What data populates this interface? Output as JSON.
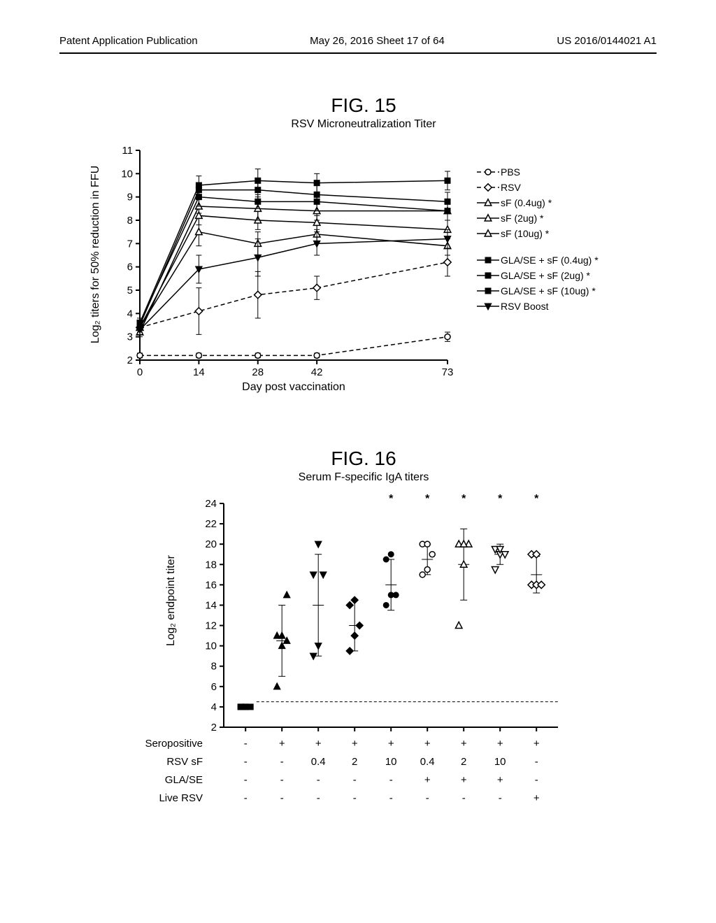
{
  "header": {
    "left": "Patent Application Publication",
    "center": "May 26, 2016  Sheet 17 of 64",
    "right": "US 2016/0144021 A1"
  },
  "fig15": {
    "title": "FIG. 15",
    "subtitle": "RSV Microneutralization Titer",
    "ylabel": "Log₂ titers for 50% reduction in FFU",
    "xlabel": "Day post vaccination",
    "xticks": [
      0,
      14,
      28,
      42,
      73
    ],
    "yticks": [
      2,
      3,
      4,
      5,
      6,
      7,
      8,
      9,
      10,
      11
    ],
    "ylim": [
      2,
      11
    ],
    "series": [
      {
        "name": "PBS",
        "marker": "circle-open",
        "dash": true,
        "data": [
          [
            0,
            2.2
          ],
          [
            14,
            2.2
          ],
          [
            28,
            2.2
          ],
          [
            42,
            2.2
          ],
          [
            73,
            3.0
          ]
        ],
        "err": [
          0.1,
          0.1,
          0.1,
          0.1,
          0.2
        ]
      },
      {
        "name": "RSV",
        "marker": "diamond-open",
        "dash": true,
        "data": [
          [
            0,
            3.4
          ],
          [
            14,
            4.1
          ],
          [
            28,
            4.8
          ],
          [
            42,
            5.1
          ],
          [
            73,
            6.2
          ]
        ],
        "err": [
          0.3,
          1.0,
          1.0,
          0.5,
          0.6
        ]
      },
      {
        "name": "sF (0.4ug) *",
        "marker": "triangle-up-open",
        "dash": false,
        "data": [
          [
            0,
            3.4
          ],
          [
            14,
            7.5
          ],
          [
            28,
            7.0
          ],
          [
            42,
            7.4
          ],
          [
            73,
            6.9
          ]
        ],
        "err": [
          0.2,
          0.6,
          0.5,
          0.4,
          0.4
        ]
      },
      {
        "name": "sF (2ug) *",
        "marker": "triangle-up-open",
        "dash": false,
        "data": [
          [
            0,
            3.4
          ],
          [
            14,
            8.2
          ],
          [
            28,
            8.0
          ],
          [
            42,
            7.9
          ],
          [
            73,
            7.6
          ]
        ],
        "err": [
          0.2,
          0.4,
          0.4,
          0.3,
          0.4
        ]
      },
      {
        "name": "sF (10ug) *",
        "marker": "triangle-up-open",
        "dash": false,
        "data": [
          [
            0,
            3.2
          ],
          [
            14,
            8.6
          ],
          [
            28,
            8.5
          ],
          [
            42,
            8.4
          ],
          [
            73,
            8.4
          ]
        ],
        "err": [
          0.2,
          0.3,
          0.5,
          0.4,
          0.4
        ]
      },
      {
        "name": "GLA/SE + sF (0.4ug) *",
        "marker": "square-solid",
        "dash": false,
        "data": [
          [
            0,
            3.6
          ],
          [
            14,
            9.0
          ],
          [
            28,
            8.8
          ],
          [
            42,
            8.8
          ],
          [
            73,
            8.4
          ]
        ],
        "err": [
          0.2,
          0.4,
          0.3,
          0.4,
          0.4
        ]
      },
      {
        "name": "GLA/SE + sF (2ug) *",
        "marker": "square-solid",
        "dash": false,
        "data": [
          [
            0,
            3.5
          ],
          [
            14,
            9.3
          ],
          [
            28,
            9.3
          ],
          [
            42,
            9.1
          ],
          [
            73,
            8.8
          ]
        ],
        "err": [
          0.2,
          0.3,
          0.4,
          0.4,
          0.4
        ]
      },
      {
        "name": "GLA/SE + sF (10ug) *",
        "marker": "square-solid",
        "dash": false,
        "data": [
          [
            0,
            3.6
          ],
          [
            14,
            9.5
          ],
          [
            28,
            9.7
          ],
          [
            42,
            9.6
          ],
          [
            73,
            9.7
          ]
        ],
        "err": [
          0.2,
          0.4,
          0.5,
          0.4,
          0.4
        ]
      },
      {
        "name": "RSV Boost",
        "marker": "triangle-down-solid",
        "dash": false,
        "data": [
          [
            0,
            3.3
          ],
          [
            14,
            5.9
          ],
          [
            28,
            6.4
          ],
          [
            42,
            7.0
          ],
          [
            73,
            7.2
          ]
        ],
        "err": [
          0.2,
          0.6,
          0.8,
          0.5,
          0.4
        ]
      }
    ]
  },
  "fig16": {
    "title": "FIG. 16",
    "subtitle": "Serum F-specific IgA titers",
    "ylabel": "Log₂ endpoint titer",
    "yticks": [
      2,
      4,
      6,
      8,
      10,
      12,
      14,
      16,
      18,
      20,
      22,
      24
    ],
    "ylim": [
      2,
      24
    ],
    "lod": 4.5,
    "row_labels": [
      "Seropositive",
      "RSV sF",
      "GLA/SE",
      "Live RSV"
    ],
    "groups": [
      {
        "cat": [
          "-",
          "-",
          "-",
          "-"
        ],
        "marker": "square-solid",
        "points": [
          4,
          4,
          4,
          4,
          4
        ],
        "mean": 4,
        "err": 0.2,
        "sig": ""
      },
      {
        "cat": [
          "+",
          "-",
          "-",
          "-"
        ],
        "marker": "triangle-up-solid",
        "points": [
          6,
          10,
          10.5,
          11,
          11,
          15
        ],
        "mean": 10.5,
        "err": 3.5,
        "sig": ""
      },
      {
        "cat": [
          "+",
          "0.4",
          "-",
          "-"
        ],
        "marker": "triangle-down-solid",
        "points": [
          9,
          10,
          17,
          17,
          20
        ],
        "mean": 14,
        "err": 5,
        "sig": ""
      },
      {
        "cat": [
          "+",
          "2",
          "-",
          "-"
        ],
        "marker": "diamond-solid",
        "points": [
          9.5,
          11,
          12,
          14,
          14.5
        ],
        "mean": 12,
        "err": 2.5,
        "sig": ""
      },
      {
        "cat": [
          "+",
          "10",
          "-",
          "-"
        ],
        "marker": "circle-solid",
        "points": [
          14,
          15,
          15,
          18.5,
          19
        ],
        "mean": 16,
        "err": 2.5,
        "sig": "*"
      },
      {
        "cat": [
          "+",
          "0.4",
          "+",
          "-"
        ],
        "marker": "circle-open",
        "points": [
          17,
          17.5,
          19,
          20,
          20
        ],
        "mean": 18.5,
        "err": 1.5,
        "sig": "*"
      },
      {
        "cat": [
          "+",
          "2",
          "+",
          "-"
        ],
        "marker": "triangle-up-open",
        "points": [
          12,
          18,
          20,
          20,
          20
        ],
        "mean": 18,
        "err": 3.5,
        "sig": "*"
      },
      {
        "cat": [
          "+",
          "10",
          "+",
          "-"
        ],
        "marker": "triangle-down-open",
        "points": [
          17.5,
          19,
          19,
          19.5,
          19.5
        ],
        "mean": 19,
        "err": 1,
        "sig": "*"
      },
      {
        "cat": [
          "+",
          "-",
          "-",
          "+"
        ],
        "marker": "diamond-open",
        "points": [
          16,
          16,
          16,
          19,
          19
        ],
        "mean": 17,
        "err": 1.8,
        "sig": "*"
      }
    ]
  }
}
